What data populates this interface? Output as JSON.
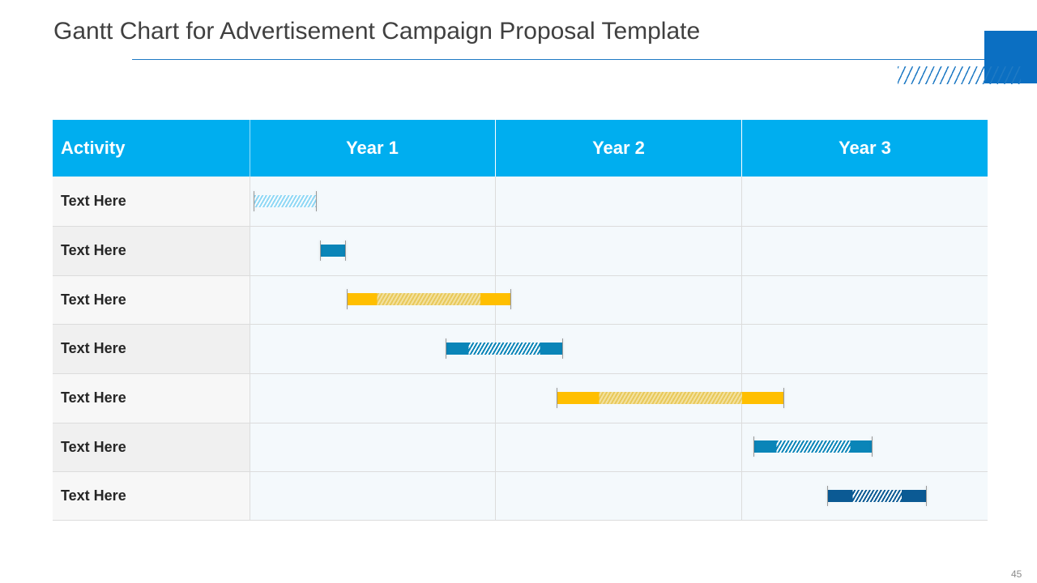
{
  "title": "Gantt Chart for Advertisement Campaign Proposal Template",
  "page_number": "45",
  "colors": {
    "header": "#00aeef",
    "light_blue": "#8fd8f5",
    "teal": "#0a85b8",
    "gold": "#ffbf00",
    "navy": "#0b5a94"
  },
  "chart_data": {
    "type": "gantt",
    "columns": [
      "Activity",
      "Year 1",
      "Year 2",
      "Year 3"
    ],
    "x_range": [
      0,
      3
    ],
    "x_unit": "years",
    "tasks": [
      {
        "label": "Text Here",
        "start": 0.02,
        "end": 0.27,
        "solid_start": 0,
        "solid_end": 0,
        "style": "light_blue"
      },
      {
        "label": "Text Here",
        "start": 0.29,
        "end": 0.39,
        "solid_start": 0.1,
        "solid_end": 0,
        "style": "teal"
      },
      {
        "label": "Text Here",
        "start": 0.4,
        "end": 1.06,
        "solid_start": 0.12,
        "solid_end": 0.12,
        "style": "gold"
      },
      {
        "label": "Text Here",
        "start": 0.8,
        "end": 1.27,
        "solid_start": 0.09,
        "solid_end": 0.09,
        "style": "teal"
      },
      {
        "label": "Text Here",
        "start": 1.25,
        "end": 2.17,
        "solid_start": 0.17,
        "solid_end": 0.17,
        "style": "gold"
      },
      {
        "label": "Text Here",
        "start": 2.05,
        "end": 2.53,
        "solid_start": 0.09,
        "solid_end": 0.09,
        "style": "teal"
      },
      {
        "label": "Text Here",
        "start": 2.35,
        "end": 2.75,
        "solid_start": 0.1,
        "solid_end": 0.1,
        "style": "navy"
      }
    ]
  }
}
